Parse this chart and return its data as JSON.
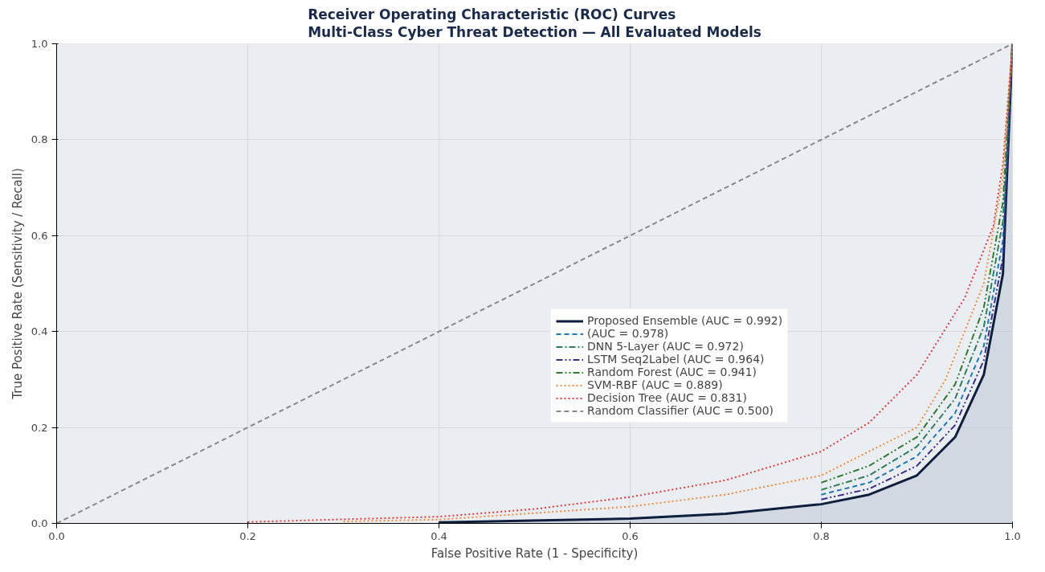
{
  "chart_data": {
    "type": "line",
    "title": "Receiver Operating Characteristic (ROC) Curves\nMulti-Class Cyber Threat Detection — All Evaluated Models",
    "xlabel": "False Positive Rate (1 - Specificity)",
    "ylabel": "True Positive Rate (Sensitivity / Recall)",
    "xlim": [
      0,
      1
    ],
    "ylim": [
      0,
      1
    ],
    "xticks": [
      {
        "value": 0,
        "label": "0.0"
      },
      0.2,
      0.4,
      0.6,
      0.8,
      {
        "value": 1,
        "label": "1.0"
      }
    ],
    "yticks": [
      {
        "value": 0,
        "label": "0.0"
      },
      0.2,
      0.4,
      0.6,
      0.8,
      {
        "value": 1,
        "label": "1.0"
      }
    ],
    "grid": true,
    "legend": "bottom right",
    "series": [
      {
        "name": "Proposed Ensemble (AUC = 0.992)",
        "type": "area",
        "color": "#0d1f3c",
        "line_style": "solid",
        "x": [
          0.4,
          0.6,
          0.7,
          0.8,
          0.85,
          0.9,
          0.94,
          0.97,
          0.99,
          1
        ],
        "values": [
          0.002,
          0.01,
          0.02,
          0.04,
          0.06,
          0.1,
          0.18,
          0.31,
          0.52,
          1
        ]
      },
      {
        "name": "(AUC = 0.978)",
        "color": "#1f77b4",
        "line_style": "dashed",
        "x": [
          0.8,
          0.85,
          0.9,
          0.94,
          0.97,
          0.99,
          1
        ],
        "values": [
          0.06,
          0.085,
          0.14,
          0.23,
          0.37,
          0.59,
          1
        ]
      },
      {
        "name": "DNN 5-Layer (AUC = 0.972)",
        "color": "#2e7d5b",
        "line_style": "dashdot",
        "x": [
          0.8,
          0.85,
          0.9,
          0.94,
          0.97,
          0.99,
          1
        ],
        "values": [
          0.07,
          0.1,
          0.16,
          0.26,
          0.41,
          0.63,
          1
        ]
      },
      {
        "name": "LSTM Seq2Label (AUC = 0.964)",
        "color": "#3b2e8c",
        "line_style": "dashdotdot",
        "x": [
          0.8,
          0.85,
          0.9,
          0.94,
          0.97,
          0.99,
          1
        ],
        "values": [
          0.05,
          0.072,
          0.12,
          0.205,
          0.34,
          0.555,
          1
        ]
      },
      {
        "name": "Random Forest (AUC = 0.941)",
        "color": "#2f7a2f",
        "line_style": "dashdotdot",
        "x": [
          0.8,
          0.85,
          0.9,
          0.94,
          0.97,
          0.99,
          1
        ],
        "values": [
          0.085,
          0.12,
          0.18,
          0.29,
          0.45,
          0.67,
          1
        ]
      },
      {
        "name": "SVM-RBF (AUC = 0.889)",
        "color": "#f08a3c",
        "line_style": "dotted",
        "x": [
          0.3,
          0.4,
          0.6,
          0.7,
          0.8,
          0.9,
          0.93,
          0.97,
          0.99,
          1
        ],
        "values": [
          0.004,
          0.008,
          0.035,
          0.06,
          0.1,
          0.2,
          0.3,
          0.5,
          0.72,
          1
        ]
      },
      {
        "name": "Decision Tree (AUC = 0.831)",
        "color": "#e03c3c",
        "line_style": "dotted",
        "x": [
          0.2,
          0.4,
          0.5,
          0.6,
          0.7,
          0.8,
          0.85,
          0.9,
          0.95,
          0.98,
          0.99,
          1
        ],
        "values": [
          0.003,
          0.014,
          0.03,
          0.055,
          0.09,
          0.15,
          0.21,
          0.31,
          0.47,
          0.62,
          0.75,
          1
        ]
      },
      {
        "name": "Random Classifier (AUC = 0.500)",
        "color": "#888888",
        "line_style": "dashed",
        "x": [
          0,
          1
        ],
        "values": [
          0,
          1
        ]
      }
    ]
  }
}
